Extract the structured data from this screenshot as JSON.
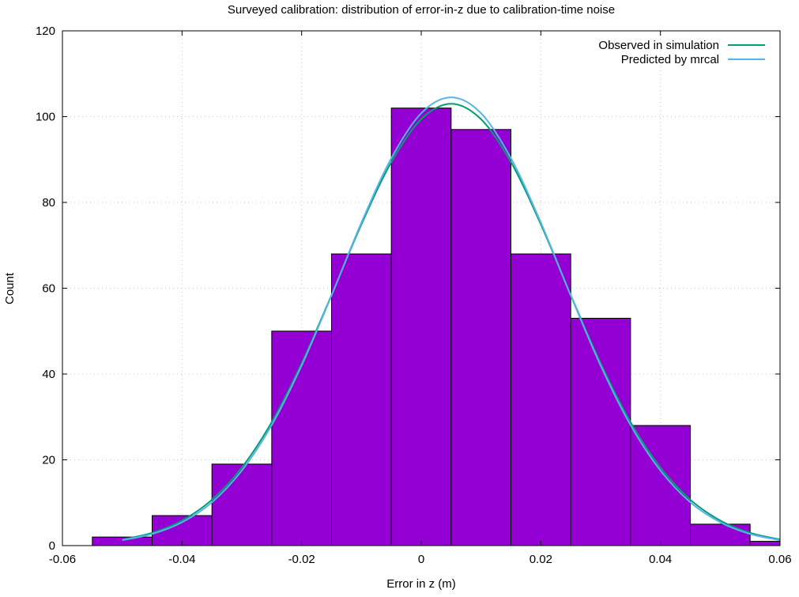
{
  "chart_data": {
    "type": "bar",
    "title": "Surveyed calibration: distribution of error-in-z due to calibration-time noise",
    "xlabel": "Error in z (m)",
    "ylabel": "Count",
    "xlim": [
      -0.06,
      0.06
    ],
    "ylim": [
      0,
      120
    ],
    "grid": true,
    "legend_position": "top-right",
    "xticks": [
      -0.06,
      -0.04,
      -0.02,
      0,
      0.02,
      0.04,
      0.06
    ],
    "xtick_labels": [
      "-0.06",
      "-0.04",
      "-0.02",
      "0",
      "0.02",
      "0.04",
      "0.06"
    ],
    "yticks": [
      0,
      20,
      40,
      60,
      80,
      100,
      120
    ],
    "ytick_labels": [
      "0",
      "20",
      "40",
      "60",
      "80",
      "100",
      "120"
    ],
    "histogram": {
      "bin_width": 0.01,
      "bin_centers": [
        -0.05,
        -0.04,
        -0.03,
        -0.02,
        -0.01,
        0,
        0.01,
        0.02,
        0.03,
        0.04,
        0.05,
        0.06
      ],
      "counts": [
        2,
        7,
        19,
        50,
        68,
        102,
        97,
        68,
        53,
        28,
        5,
        1
      ],
      "color": "#9400d3"
    },
    "series": [
      {
        "name": "Observed in simulation",
        "color": "#009e73",
        "x": [
          -0.05,
          -0.045,
          -0.04,
          -0.035,
          -0.03,
          -0.025,
          -0.02,
          -0.015,
          -0.01,
          -0.005,
          0,
          0.005,
          0.01,
          0.015,
          0.02,
          0.025,
          0.03,
          0.035,
          0.04,
          0.045,
          0.05,
          0.055,
          0.06
        ],
        "y": [
          1.42,
          2.98,
          5.85,
          10.7,
          18.2,
          28.8,
          42.5,
          58.4,
          74.9,
          89.4,
          99.4,
          103,
          99.4,
          89.4,
          74.9,
          58.4,
          42.5,
          28.8,
          18.2,
          10.7,
          5.85,
          2.98,
          1.42
        ]
      },
      {
        "name": "Predicted by mrcal",
        "color": "#56b4e9",
        "x": [
          -0.05,
          -0.045,
          -0.04,
          -0.035,
          -0.03,
          -0.025,
          -0.02,
          -0.015,
          -0.01,
          -0.005,
          0,
          0.005,
          0.01,
          0.015,
          0.02,
          0.025,
          0.03,
          0.035,
          0.04,
          0.045,
          0.05,
          0.055,
          0.06
        ],
        "y": [
          1.26,
          2.72,
          5.44,
          10.1,
          17.5,
          28.1,
          42.0,
          58.3,
          75.3,
          90.3,
          100.8,
          104.5,
          100.8,
          90.3,
          75.3,
          58.3,
          42.0,
          28.1,
          17.5,
          10.1,
          5.44,
          2.72,
          1.26
        ]
      }
    ]
  }
}
